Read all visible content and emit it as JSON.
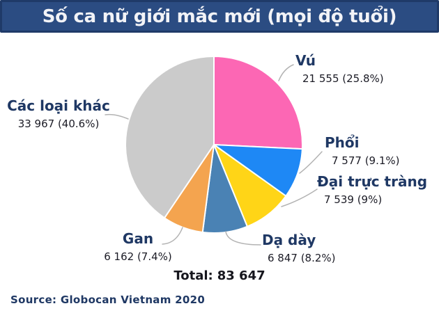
{
  "header": {
    "title": "Số ca nữ giới mắc mới (mọi độ tuổi)"
  },
  "chart_data": {
    "type": "pie",
    "title": "Số ca nữ giới mắc mới (mọi độ tuổi)",
    "start_angle_deg": 0,
    "direction": "clockwise",
    "legend_position": "outside-callout-labels",
    "grid": false,
    "total_label": "Total:",
    "total_value": "83 647",
    "total_numeric": 83647,
    "source": "Source: Globocan Vietnam 2020",
    "slices": [
      {
        "label": "Vú",
        "value": 21555,
        "pct": 25.8,
        "value_text": "21 555 (25.8%)",
        "color": "#FC67B4"
      },
      {
        "label": "Phổi",
        "value": 7577,
        "pct": 9.1,
        "value_text": "7 577 (9.1%)",
        "color": "#1E88F5"
      },
      {
        "label": "Đại trực tràng",
        "value": 7539,
        "pct": 9.0,
        "value_text": "7 539 (9%)",
        "color": "#FFD517"
      },
      {
        "label": "Dạ dày",
        "value": 6847,
        "pct": 8.2,
        "value_text": "6 847 (8.2%)",
        "color": "#4A82B4"
      },
      {
        "label": "Gan",
        "value": 6162,
        "pct": 7.4,
        "value_text": "6 162 (7.4%)",
        "color": "#F4A44F"
      },
      {
        "label": "Các loại khác",
        "value": 33967,
        "pct": 40.6,
        "value_text": "33 967 (40.6%)",
        "color": "#CBCBCB"
      }
    ]
  },
  "colors": {
    "banner_bg": "#2B4C82",
    "banner_border": "#1F3A68",
    "banner_text": "#F2F3F7",
    "label_name": "#1F3864",
    "label_value": "#1B1B25",
    "leader_line": "#B3B3B3",
    "background": "#FFFFFF"
  }
}
